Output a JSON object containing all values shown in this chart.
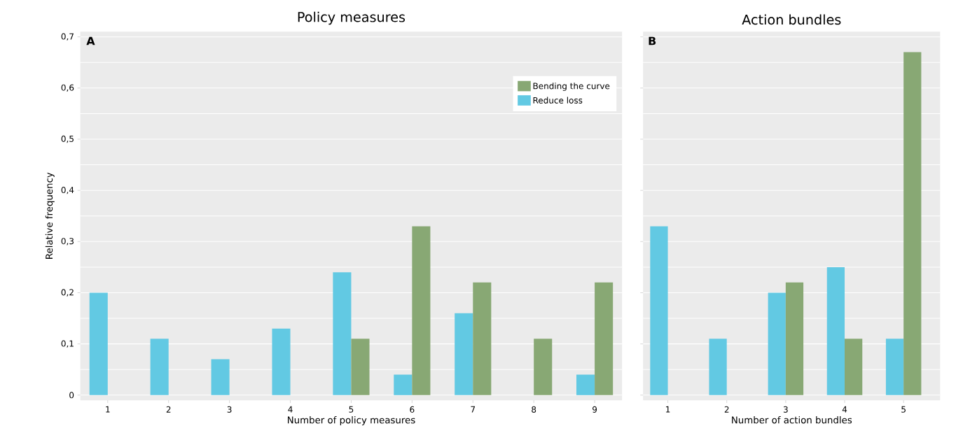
{
  "chart_data": [
    {
      "type": "bar",
      "title": "Policy measures",
      "xlabel": "Number of policy measures",
      "ylabel": "Relative frequency",
      "categories": [
        "1",
        "2",
        "3",
        "4",
        "5",
        "6",
        "7",
        "8",
        "9"
      ],
      "series": [
        {
          "name": "Reduce loss",
          "color": "#62c9e3",
          "values": [
            0.2,
            0.11,
            0.07,
            0.13,
            0.24,
            0.04,
            0.16,
            null,
            0.04
          ]
        },
        {
          "name": "Bending the curve",
          "color": "#88a874",
          "values": [
            null,
            null,
            null,
            null,
            0.11,
            0.33,
            0.22,
            0.11,
            0.22
          ]
        }
      ],
      "ylim": [
        -0.01,
        0.71
      ],
      "yticks": [
        {
          "value": 0,
          "label": "0"
        },
        {
          "value": 0.1,
          "label": "0,1"
        },
        {
          "value": 0.2,
          "label": "0,2"
        },
        {
          "value": 0.3,
          "label": "0,3"
        },
        {
          "value": 0.4,
          "label": "0,4"
        },
        {
          "value": 0.5,
          "label": "0,5"
        },
        {
          "value": 0.6,
          "label": "0,6"
        },
        {
          "value": 0.7,
          "label": "0,7"
        }
      ],
      "grid": "y",
      "legend": "top right",
      "annotations": [
        "A"
      ]
    },
    {
      "type": "bar",
      "title": "Action bundles",
      "xlabel": "Number of action bundles",
      "categories": [
        "1",
        "2",
        "3",
        "4",
        "5"
      ],
      "series": [
        {
          "color": "#62c9e3",
          "values": [
            0.33,
            0.11,
            0.2,
            0.25,
            0.11
          ]
        },
        {
          "color": "#88a874",
          "values": [
            null,
            null,
            0.22,
            0.11,
            0.67
          ]
        }
      ],
      "ylim": [
        -0.01,
        0.71
      ],
      "yticks": [
        {
          "value": 0,
          "label": null
        },
        {
          "value": 0.1,
          "label": null
        },
        {
          "value": 0.2,
          "label": null
        },
        {
          "value": 0.3,
          "label": null
        },
        {
          "value": 0.4,
          "label": null
        },
        {
          "value": 0.5,
          "label": null
        },
        {
          "value": 0.6,
          "label": null
        },
        {
          "value": 0.7,
          "label": null
        }
      ],
      "grid": "y",
      "tick_labels": "x",
      "annotations": [
        "B"
      ]
    }
  ]
}
